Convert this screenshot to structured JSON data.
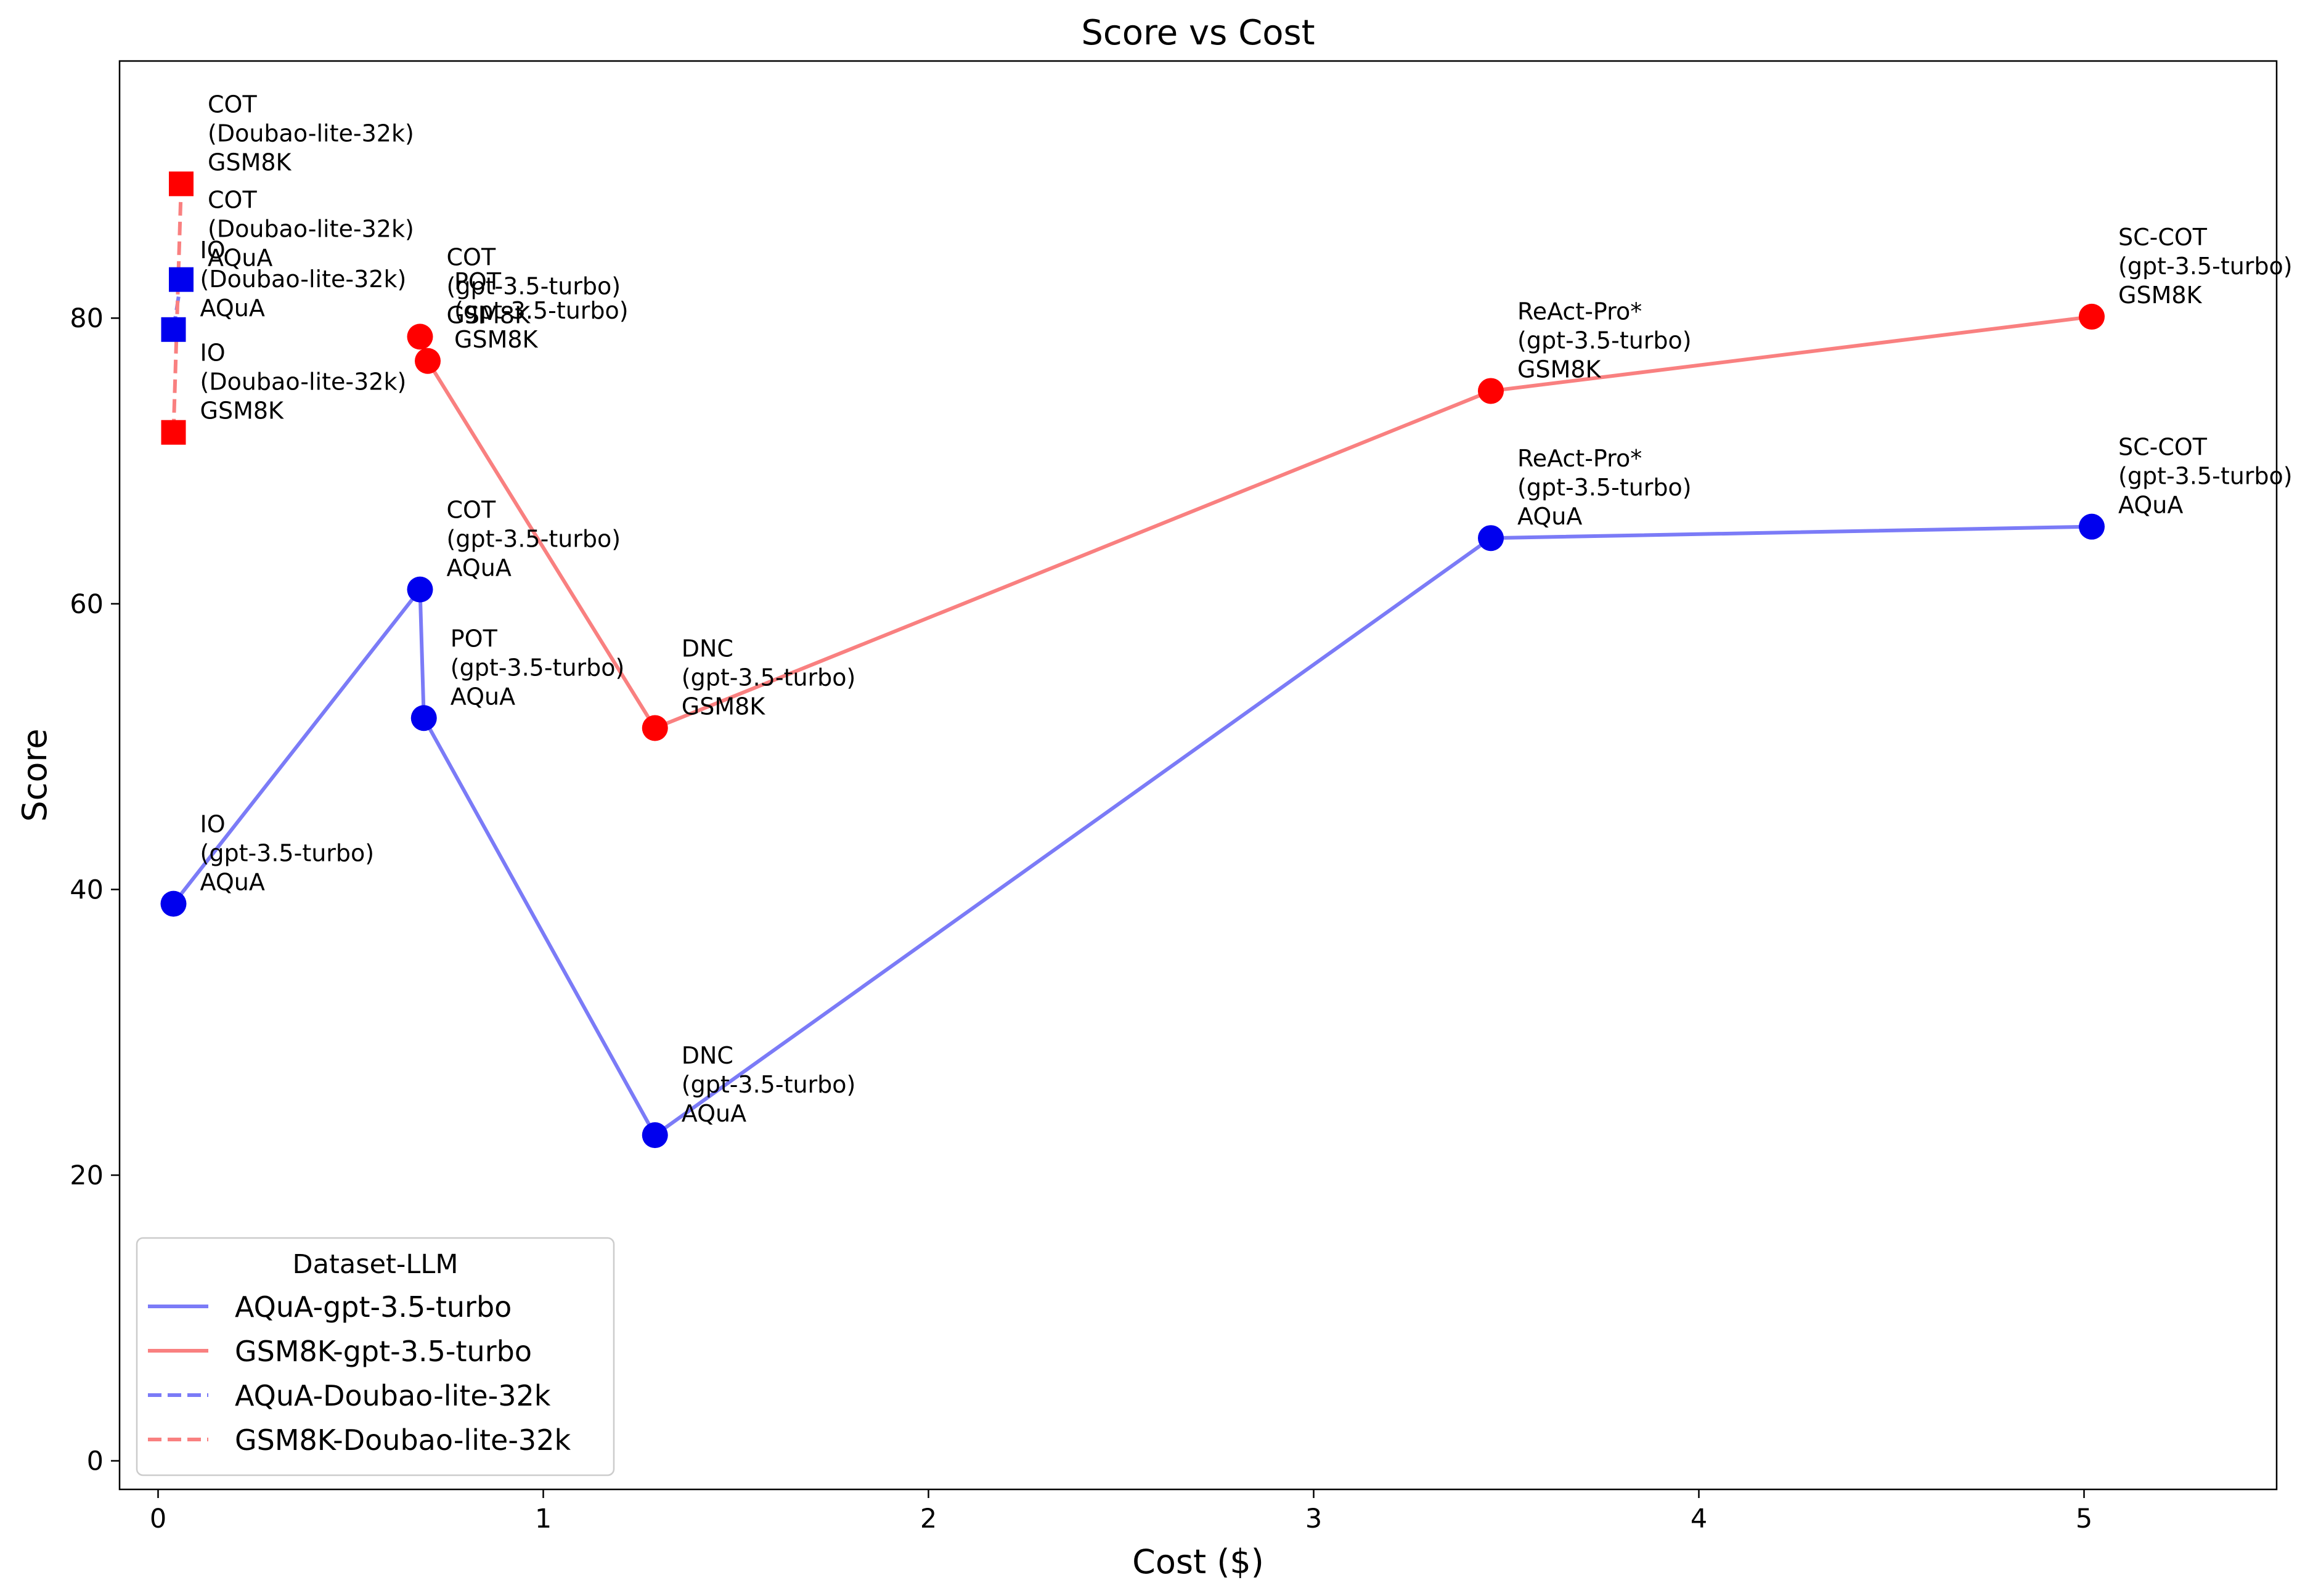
{
  "chart_data": {
    "type": "line",
    "title": "Score vs Cost",
    "xlabel": "Cost ($)",
    "ylabel": "Score",
    "xlim": [
      -0.1,
      5.5
    ],
    "ylim": [
      -2,
      98
    ],
    "xticks": [
      0,
      1,
      2,
      3,
      4,
      5
    ],
    "yticks": [
      0,
      20,
      40,
      60,
      80
    ],
    "grid": false,
    "legend": {
      "title": "Dataset-LLM",
      "placement": "lower-left"
    },
    "series": [
      {
        "name": "AQuA-gpt-3.5-turbo",
        "color": "#0000ee",
        "line_color": "#7b7bf7",
        "dashed": false,
        "marker": "circle",
        "points": [
          {
            "x": 0.04,
            "y": 39.0,
            "label": [
              "IO",
              "(gpt-3.5-turbo)",
              "AQuA"
            ]
          },
          {
            "x": 0.68,
            "y": 61.0,
            "label": [
              "COT",
              "(gpt-3.5-turbo)",
              "AQuA"
            ]
          },
          {
            "x": 0.69,
            "y": 52.0,
            "label": [
              "POT",
              "(gpt-3.5-turbo)",
              "AQuA"
            ]
          },
          {
            "x": 1.29,
            "y": 22.8,
            "label": [
              "DNC",
              "(gpt-3.5-turbo)",
              "AQuA"
            ]
          },
          {
            "x": 3.46,
            "y": 64.6,
            "label": [
              "ReAct-Pro*",
              "(gpt-3.5-turbo)",
              "AQuA"
            ]
          },
          {
            "x": 5.02,
            "y": 65.4,
            "label": [
              "SC-COT",
              "(gpt-3.5-turbo)",
              "AQuA"
            ]
          }
        ]
      },
      {
        "name": "GSM8K-gpt-3.5-turbo",
        "color": "#ff0000",
        "line_color": "#f98080",
        "dashed": false,
        "marker": "circle",
        "points": [
          {
            "x": 0.68,
            "y": 78.7,
            "label": [
              "COT",
              "(gpt-3.5-turbo)",
              "GSM8K"
            ]
          },
          {
            "x": 0.7,
            "y": 77.0,
            "label": [
              "POT",
              "(gpt-3.5-turbo)",
              "GSM8K"
            ]
          },
          {
            "x": 1.29,
            "y": 51.3,
            "label": [
              "DNC",
              "(gpt-3.5-turbo)",
              "GSM8K"
            ]
          },
          {
            "x": 3.46,
            "y": 74.9,
            "label": [
              "ReAct-Pro*",
              "(gpt-3.5-turbo)",
              "GSM8K"
            ]
          },
          {
            "x": 5.02,
            "y": 80.1,
            "label": [
              "SC-COT",
              "(gpt-3.5-turbo)",
              "GSM8K"
            ]
          }
        ]
      },
      {
        "name": "AQuA-Doubao-lite-32k",
        "color": "#0000ee",
        "line_color": "#7b7bf7",
        "dashed": true,
        "marker": "square",
        "points": [
          {
            "x": 0.04,
            "y": 79.2,
            "label": [
              "IO",
              "(Doubao-lite-32k)",
              "AQuA"
            ]
          },
          {
            "x": 0.06,
            "y": 82.7,
            "label": [
              "COT",
              "(Doubao-lite-32k)",
              "AQuA"
            ]
          }
        ]
      },
      {
        "name": "GSM8K-Doubao-lite-32k",
        "color": "#ff0000",
        "line_color": "#f98080",
        "dashed": true,
        "marker": "square",
        "points": [
          {
            "x": 0.04,
            "y": 72.0,
            "label": [
              "IO",
              "(Doubao-lite-32k)",
              "GSM8K"
            ]
          },
          {
            "x": 0.06,
            "y": 89.4,
            "label": [
              "COT",
              "(Doubao-lite-32k)",
              "GSM8K"
            ]
          }
        ]
      }
    ]
  }
}
